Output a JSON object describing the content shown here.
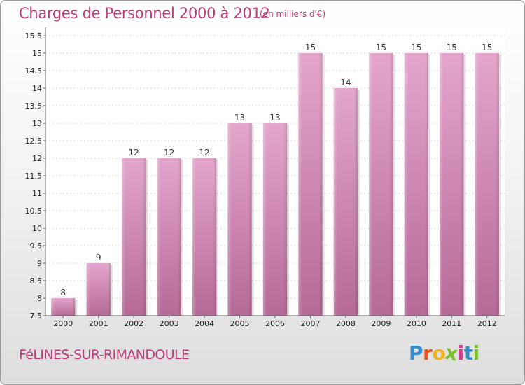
{
  "header": {
    "title": "Charges de Personnel 2000 à 2012",
    "unit": "(en milliers d'€)"
  },
  "footer": {
    "commune": "FéLINES-SUR-RIMANDOULE",
    "logo_letters": [
      "P",
      "r",
      "o",
      "x",
      "i",
      "t",
      "i"
    ],
    "logo_colors": [
      "#2f8ecf",
      "#e8561f",
      "#f2b01e",
      "#7bbf2a",
      "#d63a8f",
      "#2f8ecf",
      "#7bbf2a"
    ]
  },
  "colors": {
    "bar_top": "#e4a6cd",
    "bar_bottom": "#b56a98",
    "title": "#c03a7a"
  },
  "chart_data": {
    "type": "bar",
    "title": "Charges de Personnel 2000 à 2012",
    "subtitle": "(en milliers d'€)",
    "categories": [
      "2000",
      "2001",
      "2002",
      "2003",
      "2004",
      "2005",
      "2006",
      "2007",
      "2008",
      "2009",
      "2010",
      "2011",
      "2012"
    ],
    "values": [
      8,
      9,
      12,
      12,
      12,
      13,
      13,
      15,
      14,
      15,
      15,
      15,
      15
    ],
    "ylim": [
      7.5,
      15.5
    ],
    "yticks": [
      "7.5",
      "8",
      "8.5",
      "9",
      "9.5",
      "10",
      "10.5",
      "11",
      "11.5",
      "12",
      "12.5",
      "13",
      "13.5",
      "14",
      "14.5",
      "15",
      "15.5"
    ],
    "grid": true,
    "legend": "none"
  }
}
